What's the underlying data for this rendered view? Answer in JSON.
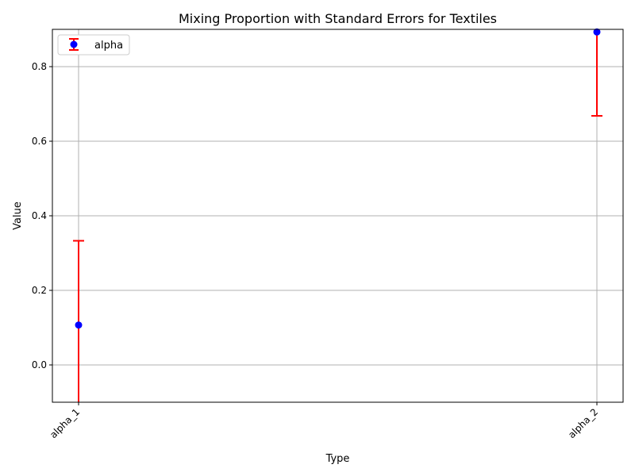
{
  "chart_data": {
    "type": "scatter",
    "title": "Mixing Proportion with Standard Errors for Textiles",
    "xlabel": "Type",
    "ylabel": "Value",
    "categories": [
      "alpha_1",
      "alpha_2"
    ],
    "series": [
      {
        "name": "alpha",
        "values": [
          0.107,
          0.893
        ],
        "error_lower": [
          -0.12,
          0.668
        ],
        "error_upper": [
          0.333,
          1.118
        ],
        "marker_color": "#0000ff",
        "error_color": "#ff0000"
      }
    ],
    "ylim": [
      -0.1,
      0.9
    ],
    "yticks": [
      0.0,
      0.2,
      0.4,
      0.6,
      0.8
    ],
    "ytick_labels": [
      "0.0",
      "0.2",
      "0.4",
      "0.6",
      "0.8"
    ],
    "grid": true,
    "legend_position": "top-left"
  }
}
